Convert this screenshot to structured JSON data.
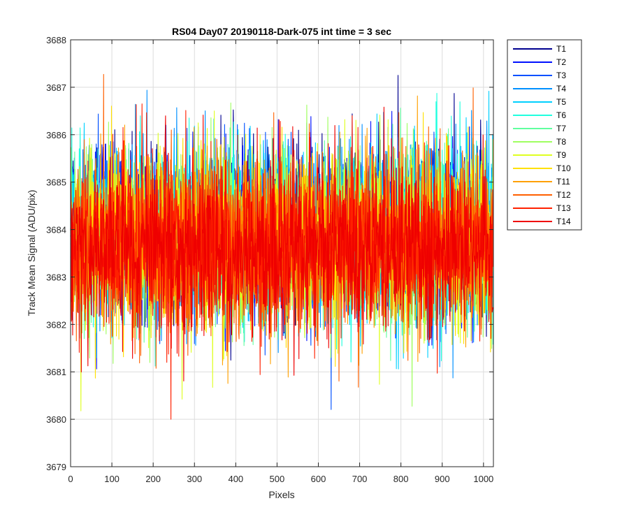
{
  "chart_data": {
    "type": "line",
    "title": "RS04 Day07 20190118-Dark-075 int time = 3 sec",
    "xlabel": "Pixels",
    "ylabel": "Track Mean Signal (ADU/pix)",
    "xlim": [
      0,
      1024
    ],
    "ylim": [
      3679,
      3688
    ],
    "xticks": [
      0,
      100,
      200,
      300,
      400,
      500,
      600,
      700,
      800,
      900,
      1000
    ],
    "yticks": [
      3679,
      3680,
      3681,
      3682,
      3683,
      3684,
      3685,
      3686,
      3687,
      3688
    ],
    "grid": true,
    "legend_position": "outside-top-right",
    "x_points": 1024,
    "noise_mean_range": [
      3683.6,
      3684.0
    ],
    "noise_sd": 0.9,
    "series": [
      {
        "name": "T1",
        "color": "#00008f",
        "mean": 3684.0
      },
      {
        "name": "T2",
        "color": "#0010ff",
        "mean": 3684.0
      },
      {
        "name": "T3",
        "color": "#0050ff",
        "mean": 3684.0
      },
      {
        "name": "T4",
        "color": "#0090ff",
        "mean": 3683.9
      },
      {
        "name": "T5",
        "color": "#00d0ff",
        "mean": 3683.9
      },
      {
        "name": "T6",
        "color": "#20ffdf",
        "mean": 3683.9
      },
      {
        "name": "T7",
        "color": "#60ff9f",
        "mean": 3683.8
      },
      {
        "name": "T8",
        "color": "#9fff60",
        "mean": 3683.8
      },
      {
        "name": "T9",
        "color": "#dfff20",
        "mean": 3683.8
      },
      {
        "name": "T10",
        "color": "#ffe000",
        "mean": 3683.8
      },
      {
        "name": "T11",
        "color": "#ffa000",
        "mean": 3683.7
      },
      {
        "name": "T12",
        "color": "#ff6000",
        "mean": 3683.7
      },
      {
        "name": "T13",
        "color": "#ff2000",
        "mean": 3683.7
      },
      {
        "name": "T14",
        "color": "#ef0000",
        "mean": 3683.6
      }
    ]
  }
}
